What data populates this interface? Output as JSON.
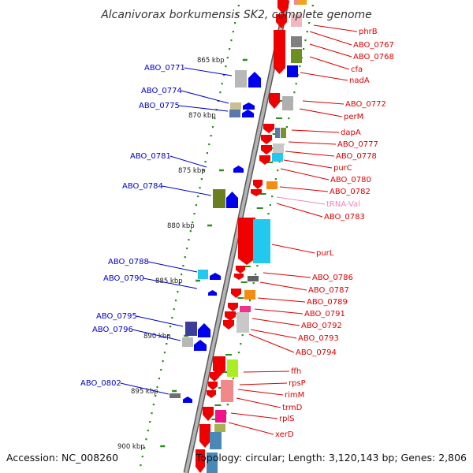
{
  "title": "Alcanivorax borkumensis SK2, complete genome",
  "footer": {
    "accession": "Accession: NC_008260",
    "summary": "Topology: circular; Length: 3,120,143 bp; Genes: 2,806"
  },
  "colors": {
    "backbone": "#8c8c8c",
    "tick_green": "#2e8b1f",
    "dot_green": "#2e8b1f",
    "left_label": "#0000cc",
    "right_label": "#dd0000",
    "trna_label": "#ee88bb"
  },
  "kbp_ticks": [
    "865 kbp",
    "870 kbp",
    "875 kbp",
    "880 kbp",
    "885 kbp",
    "890 kbp",
    "895 kbp",
    "900 kbp"
  ],
  "left_labels": [
    "ABO_0771",
    "ABO_0774",
    "ABO_0775",
    "ABO_0781",
    "ABO_0784",
    "ABO_0788",
    "ABO_0790",
    "ABO_0795",
    "ABO_0796",
    "ABO_0802"
  ],
  "right_labels": [
    "phrB",
    "ABO_0767",
    "ABO_0768",
    "cfa",
    "nadA",
    "ABO_0772",
    "perM",
    "dapA",
    "ABO_0777",
    "ABO_0778",
    "purC",
    "ABO_0780",
    "ABO_0782",
    "tRNA-Val",
    "ABO_0783",
    "purL",
    "ABO_0786",
    "ABO_0787",
    "ABO_0789",
    "ABO_0791",
    "ABO_0792",
    "ABO_0793",
    "ABO_0794",
    "ffh",
    "rpsP",
    "rimM",
    "trmD",
    "rplS",
    "xerD"
  ]
}
